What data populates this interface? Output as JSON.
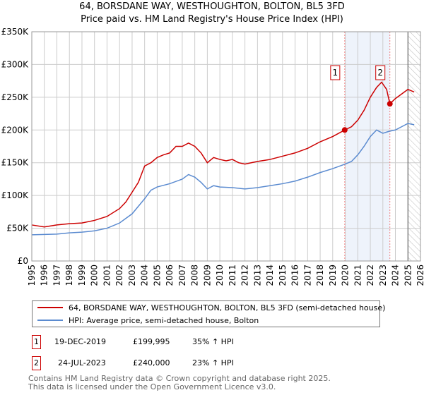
{
  "chart_data": {
    "type": "line",
    "title": "64, BORSDANE WAY, WESTHOUGHTON, BOLTON, BL5 3FD",
    "subtitle": "Price paid vs. HM Land Registry's House Price Index (HPI)",
    "ylim": [
      0,
      350000
    ],
    "xlim": [
      1995,
      2026
    ],
    "yticks": [
      {
        "v": 0,
        "label": "£0"
      },
      {
        "v": 50000,
        "label": "£50K"
      },
      {
        "v": 100000,
        "label": "£100K"
      },
      {
        "v": 150000,
        "label": "£150K"
      },
      {
        "v": 200000,
        "label": "£200K"
      },
      {
        "v": 250000,
        "label": "£250K"
      },
      {
        "v": 300000,
        "label": "£300K"
      },
      {
        "v": 350000,
        "label": "£350K"
      }
    ],
    "xticks": [
      "1995",
      "1996",
      "1997",
      "1998",
      "1999",
      "2000",
      "2001",
      "2002",
      "2003",
      "2004",
      "2005",
      "2006",
      "2007",
      "2008",
      "2009",
      "2010",
      "2011",
      "2012",
      "2013",
      "2014",
      "2015",
      "2016",
      "2017",
      "2018",
      "2019",
      "2020",
      "2021",
      "2022",
      "2023",
      "2024",
      "2025",
      "2026"
    ],
    "grid": true,
    "series": [
      {
        "name": "64, BORSDANE WAY, WESTHOUGHTON, BOLTON, BL5 3FD (semi-detached house)",
        "color": "#cc0000",
        "x": [
          1995,
          1996,
          1997,
          1998,
          1999,
          2000,
          2001,
          2002,
          2002.5,
          2003,
          2003.5,
          2004,
          2004.5,
          2005,
          2005.5,
          2006,
          2006.5,
          2007,
          2007.5,
          2008,
          2008.5,
          2009,
          2009.5,
          2010,
          2010.5,
          2011,
          2011.5,
          2012,
          2012.5,
          2013,
          2014,
          2015,
          2016,
          2017,
          2018,
          2019,
          2019.96,
          2020.5,
          2021,
          2021.5,
          2022,
          2022.5,
          2022.9,
          2023.3,
          2023.56,
          2024,
          2024.5,
          2025,
          2025.5
        ],
        "y": [
          55000,
          52000,
          55000,
          57000,
          58000,
          62000,
          68000,
          80000,
          90000,
          105000,
          120000,
          145000,
          150000,
          158000,
          162000,
          165000,
          175000,
          175000,
          180000,
          175000,
          165000,
          150000,
          158000,
          155000,
          153000,
          155000,
          150000,
          148000,
          150000,
          152000,
          155000,
          160000,
          165000,
          172000,
          182000,
          190000,
          199995,
          205000,
          215000,
          230000,
          250000,
          265000,
          273000,
          262000,
          240000,
          248000,
          255000,
          262000,
          258000
        ]
      },
      {
        "name": "HPI: Average price, semi-detached house, Bolton",
        "color": "#5b8bd0",
        "x": [
          1995,
          1997,
          1998,
          1999,
          2000,
          2001,
          2002,
          2003,
          2004,
          2004.5,
          2005,
          2006,
          2007,
          2007.5,
          2008,
          2008.5,
          2009,
          2009.5,
          2010,
          2011,
          2012,
          2013,
          2014,
          2015,
          2016,
          2017,
          2018,
          2019,
          2020,
          2020.5,
          2021,
          2021.5,
          2022,
          2022.5,
          2023,
          2023.5,
          2024,
          2025,
          2025.5
        ],
        "y": [
          40000,
          41000,
          43000,
          44000,
          46000,
          50000,
          58000,
          72000,
          95000,
          108000,
          113000,
          118000,
          125000,
          132000,
          128000,
          120000,
          110000,
          115000,
          113000,
          112000,
          110000,
          112000,
          115000,
          118000,
          122000,
          128000,
          135000,
          141000,
          148000,
          152000,
          162000,
          175000,
          190000,
          200000,
          195000,
          198000,
          200000,
          210000,
          208000
        ]
      }
    ],
    "annotations": [
      {
        "id": "1",
        "x": 2019.96,
        "y": 199995,
        "date": "19-DEC-2019",
        "price": "£199,995",
        "hpi": "35% ↑ HPI"
      },
      {
        "id": "2",
        "x": 2023.56,
        "y": 240000,
        "date": "24-JUL-2023",
        "price": "£240,000",
        "hpi": "23% ↑ HPI"
      }
    ],
    "hatch_from": 2025.0
  },
  "footer": {
    "line1": "Contains HM Land Registry data © Crown copyright and database right 2025.",
    "line2": "This data is licensed under the Open Government Licence v3.0."
  }
}
